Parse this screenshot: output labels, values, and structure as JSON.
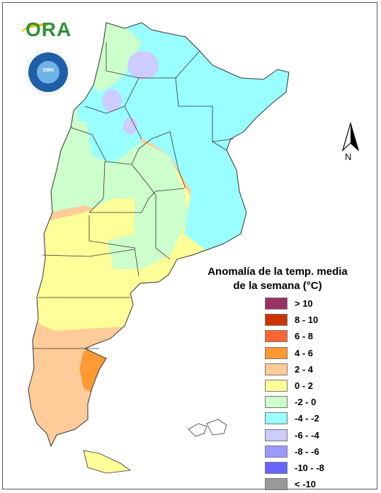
{
  "logo": {
    "text": "ORA",
    "seal_text": "SMN"
  },
  "compass": {
    "label": "N"
  },
  "legend": {
    "title_line1": "Anomalía de la temp. media",
    "title_line2": "de la semana (°C)",
    "items": [
      {
        "label": "> 10",
        "color": "#993366"
      },
      {
        "label": "8 - 10",
        "color": "#cc3300"
      },
      {
        "label": "6 - 8",
        "color": "#ff6633"
      },
      {
        "label": "4 - 6",
        "color": "#ff9933"
      },
      {
        "label": "2 - 4",
        "color": "#ffcc99"
      },
      {
        "label": "0 - 2",
        "color": "#ffff99"
      },
      {
        "label": "-2 - 0",
        "color": "#ccffcc"
      },
      {
        "label": "-4 - -2",
        "color": "#99ffff"
      },
      {
        "label": "-6 - -4",
        "color": "#ccccff"
      },
      {
        "label": "-8 - -6",
        "color": "#9999ff"
      },
      {
        "label": "-10 - -8",
        "color": "#6666ff"
      },
      {
        "label": "< -10",
        "color": "#999999"
      }
    ]
  }
}
